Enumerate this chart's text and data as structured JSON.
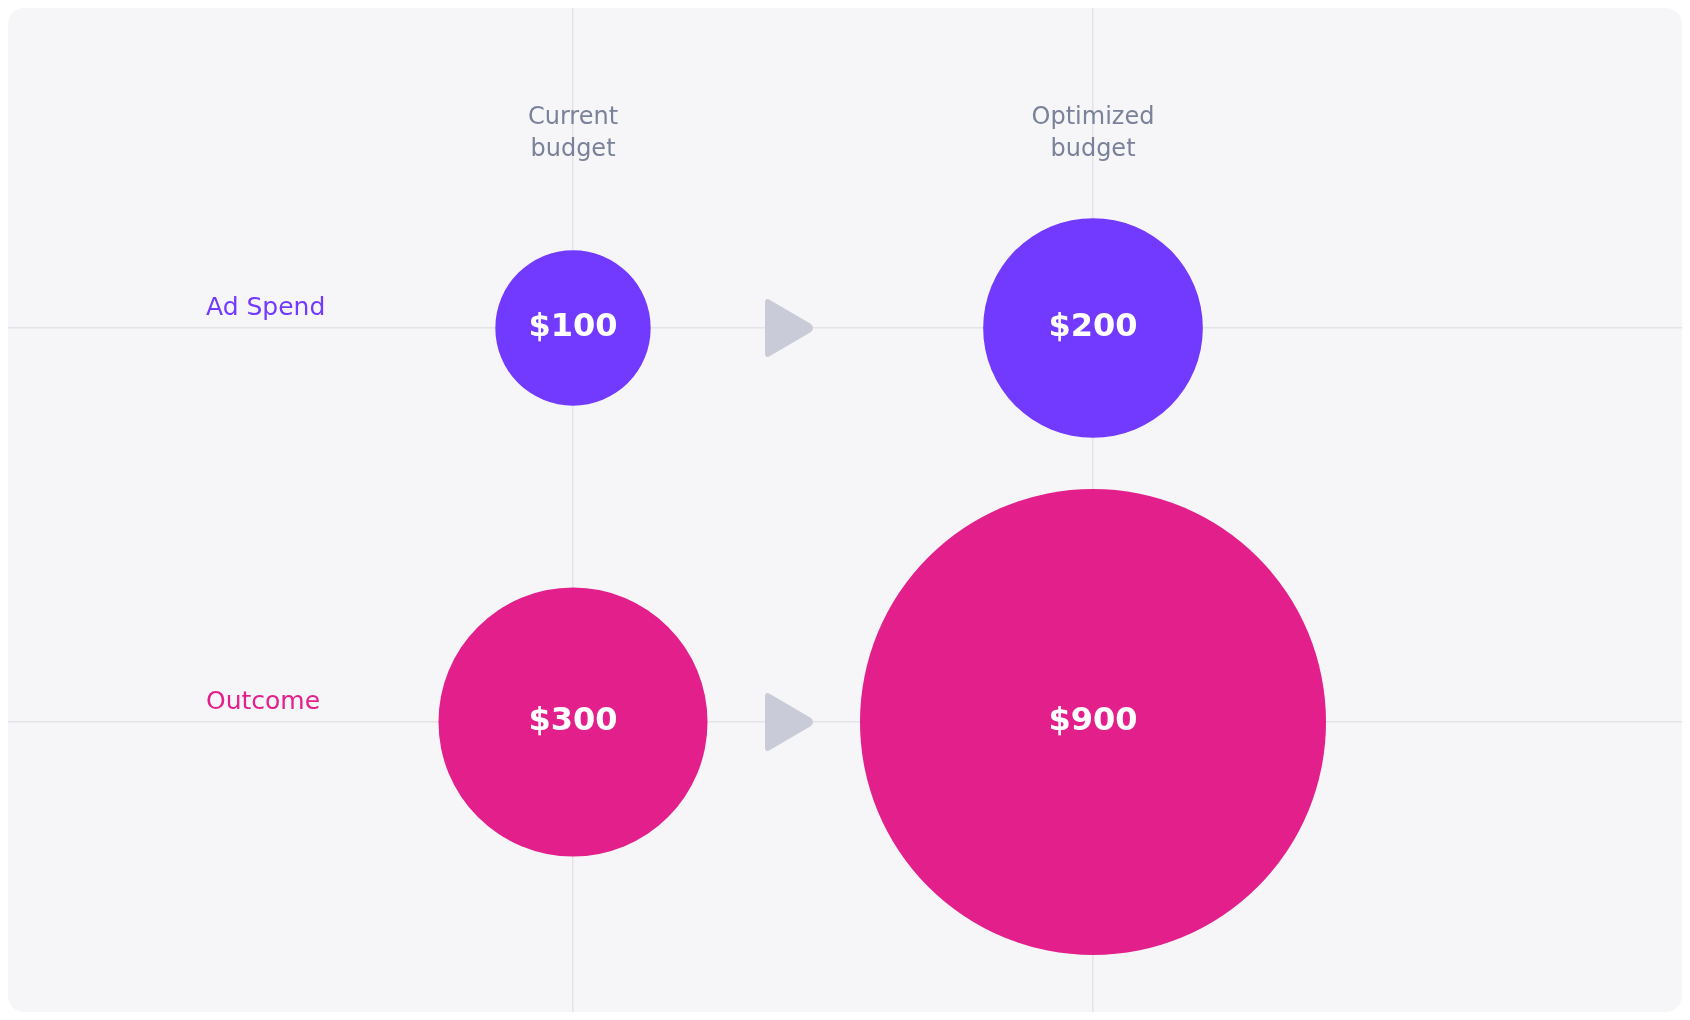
{
  "chart_data": {
    "type": "other",
    "categories": [
      "Current budget",
      "Optimized budget"
    ],
    "series": [
      {
        "name": "Ad Spend",
        "color": "#7239fe",
        "values": [
          100,
          200
        ],
        "value_labels": [
          "$100",
          "$200"
        ]
      },
      {
        "name": "Outcome",
        "color": "#e21f8b",
        "values": [
          300,
          900
        ],
        "value_labels": [
          "$300",
          "$900"
        ]
      }
    ]
  }
}
